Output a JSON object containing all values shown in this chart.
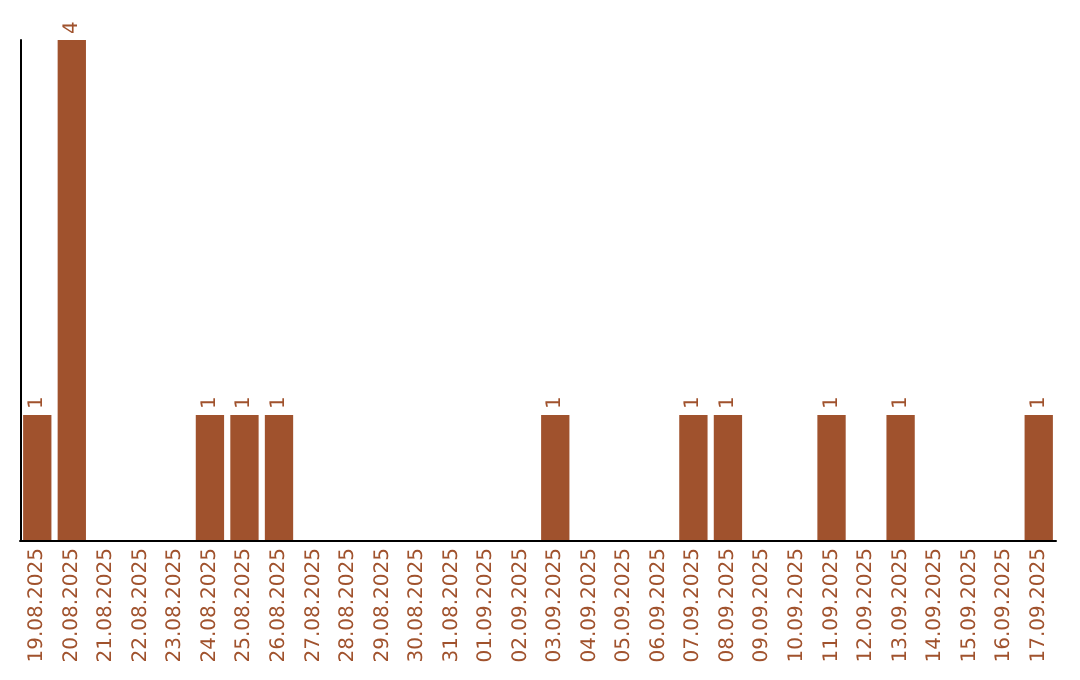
{
  "chart_data": {
    "type": "bar",
    "categories": [
      "19.08.2025",
      "20.08.2025",
      "21.08.2025",
      "22.08.2025",
      "23.08.2025",
      "24.08.2025",
      "25.08.2025",
      "26.08.2025",
      "27.08.2025",
      "28.08.2025",
      "29.08.2025",
      "30.08.2025",
      "31.08.2025",
      "01.09.2025",
      "02.09.2025",
      "03.09.2025",
      "04.09.2025",
      "05.09.2025",
      "06.09.2025",
      "07.09.2025",
      "08.09.2025",
      "09.09.2025",
      "10.09.2025",
      "11.09.2025",
      "12.09.2025",
      "13.09.2025",
      "14.09.2025",
      "15.09.2025",
      "16.09.2025",
      "17.09.2025"
    ],
    "values": [
      1,
      4,
      0,
      0,
      0,
      1,
      1,
      1,
      0,
      0,
      0,
      0,
      0,
      0,
      0,
      1,
      0,
      0,
      0,
      1,
      1,
      0,
      0,
      1,
      0,
      1,
      0,
      0,
      0,
      1
    ],
    "value_labels": [
      "1",
      "4",
      null,
      null,
      null,
      "1",
      "1",
      "1",
      null,
      null,
      null,
      null,
      null,
      null,
      null,
      "1",
      null,
      null,
      null,
      "1",
      "1",
      null,
      null,
      "1",
      null,
      "1",
      null,
      null,
      null,
      "1"
    ],
    "color": "#a0522d",
    "ylim": [
      0,
      4
    ],
    "tick_labels": "x",
    "grid": false
  }
}
